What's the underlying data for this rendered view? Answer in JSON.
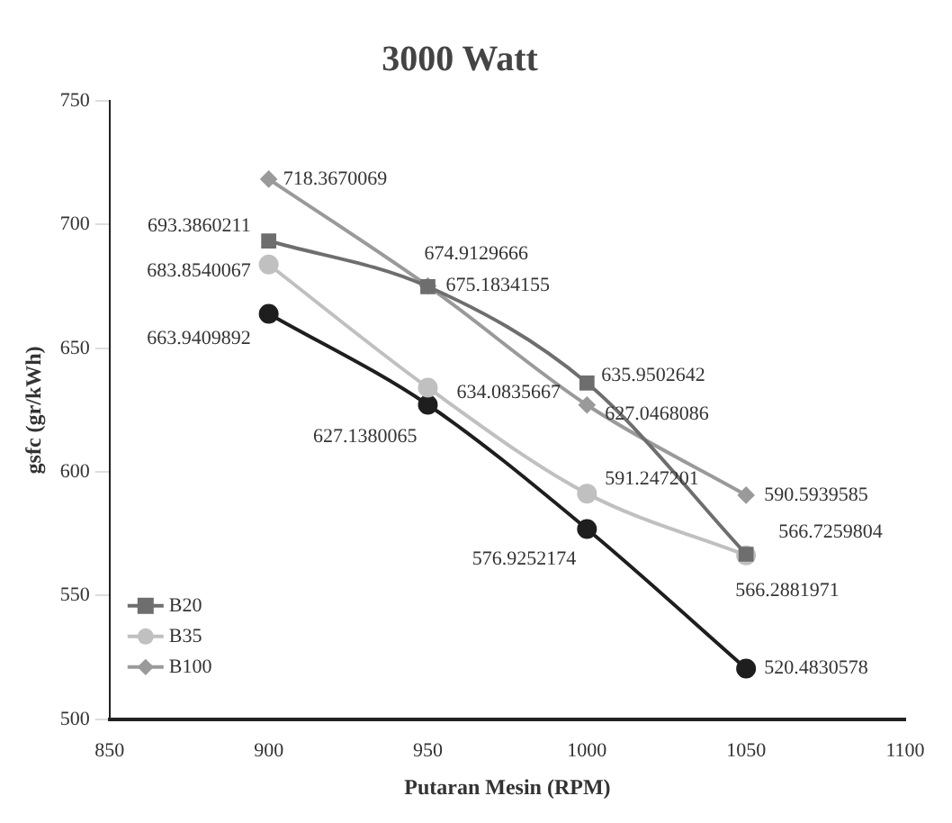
{
  "chart_data": {
    "type": "line",
    "title": "3000 Watt",
    "xlabel": "Putaran Mesin (RPM)",
    "ylabel": "gsfc (gr/kWh)",
    "x": [
      900,
      950,
      1000,
      1050
    ],
    "series": [
      {
        "name": "B20",
        "color": "#6e6e6e",
        "marker": "square",
        "values": [
          693.3860211,
          674.9129666,
          635.9502642,
          566.7259804
        ]
      },
      {
        "name": "B35",
        "color": "#c0c0c0",
        "marker": "circle",
        "values": [
          683.8540067,
          634.0835667,
          591.247201,
          566.2881971
        ]
      },
      {
        "name": "B100",
        "color": "#9a9a9a",
        "marker": "diamond",
        "values": [
          718.3670069,
          675.1834155,
          627.0468086,
          590.5939585
        ]
      },
      {
        "color": "#1e1e1e",
        "marker": "circle",
        "values": [
          663.9409892,
          627.1380065,
          576.9252174,
          520.4830578
        ]
      }
    ],
    "xlim": [
      850,
      1100
    ],
    "xticks": [
      850,
      900,
      950,
      1000,
      1050,
      1100
    ],
    "ylim": [
      500,
      750
    ],
    "yticks": [
      500,
      550,
      600,
      650,
      700,
      750
    ],
    "grid": false,
    "legend": "bottom left",
    "data_labels": true
  }
}
